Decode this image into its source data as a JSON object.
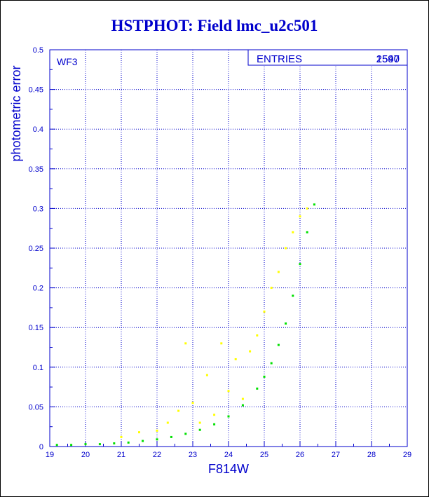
{
  "chart_data": {
    "type": "scatter",
    "title": "HSTPHOT: Field lmc_u2c501",
    "xlabel": "F814W",
    "ylabel": "photometric error",
    "xlim": [
      19,
      29
    ],
    "ylim": [
      0,
      0.5
    ],
    "x_ticks": [
      "19",
      "20",
      "21",
      "22",
      "23",
      "24",
      "25",
      "26",
      "27",
      "28",
      "29"
    ],
    "y_ticks": [
      "0",
      "0.05",
      "0.1",
      "0.15",
      "0.2",
      "0.25",
      "0.3",
      "0.35",
      "0.4",
      "0.45",
      "0.5"
    ],
    "grid": true,
    "panel_label": "WF3",
    "stats_box": {
      "label": "ENTRIES",
      "values": [
        "2597",
        "1540"
      ]
    },
    "series": [
      {
        "color": "#00e000",
        "x": [
          19.2,
          19.6,
          20.0,
          20.4,
          20.8,
          21.2,
          21.6,
          22.0,
          22.4,
          22.8,
          23.2,
          23.6,
          24.0,
          24.4,
          24.8,
          25.0,
          25.2,
          25.4,
          25.6,
          25.8,
          26.0,
          26.2,
          26.4
        ],
        "y": [
          0.002,
          0.002,
          0.003,
          0.003,
          0.004,
          0.005,
          0.007,
          0.009,
          0.012,
          0.016,
          0.021,
          0.028,
          0.038,
          0.052,
          0.073,
          0.088,
          0.105,
          0.128,
          0.155,
          0.19,
          0.23,
          0.27,
          0.305
        ]
      },
      {
        "color": "#ffff00",
        "x": [
          21.0,
          21.5,
          22.0,
          22.3,
          22.6,
          22.8,
          23.0,
          23.2,
          23.4,
          23.6,
          23.8,
          24.0,
          24.2,
          24.4,
          24.6,
          24.8,
          25.0,
          25.2,
          25.4,
          25.6,
          25.8,
          26.0,
          26.2
        ],
        "y": [
          0.012,
          0.018,
          0.02,
          0.03,
          0.045,
          0.13,
          0.055,
          0.03,
          0.09,
          0.04,
          0.13,
          0.07,
          0.11,
          0.06,
          0.12,
          0.14,
          0.17,
          0.2,
          0.22,
          0.25,
          0.27,
          0.29,
          0.3
        ]
      }
    ]
  }
}
